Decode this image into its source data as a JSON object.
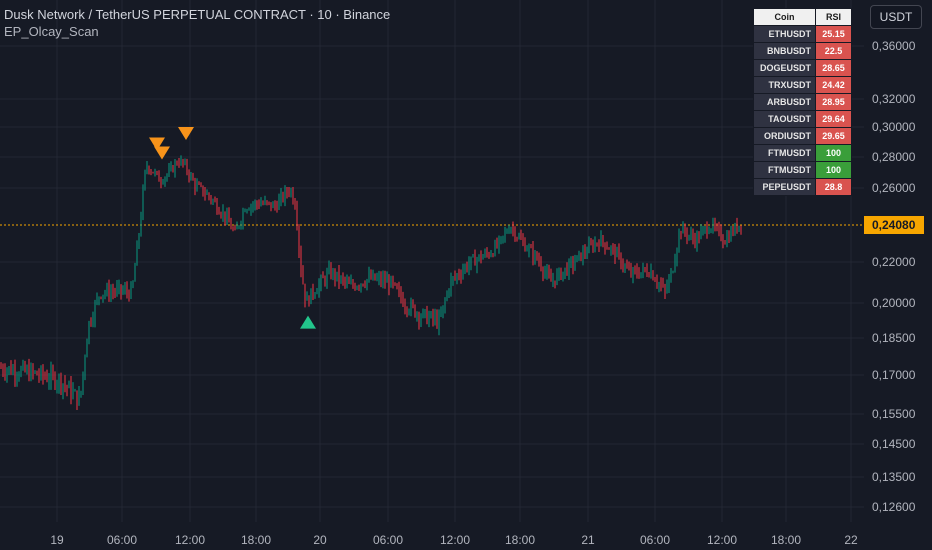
{
  "header": {
    "title": "Dusk Network / TetherUS PERPETUAL CONTRACT · 10 · Binance",
    "indicator": "EP_Olcay_Scan"
  },
  "currency": "USDT",
  "last_price": "0,24080",
  "colors": {
    "background": "#161a25",
    "grid": "#232734",
    "up_candle": "#089981",
    "down_candle": "#f23645",
    "price_line": "#f7a600",
    "sell_marker": "#f7931a",
    "buy_marker": "#22c58b",
    "rsi_low": "#d9534f",
    "rsi_high": "#3a9e3a"
  },
  "y_axis": {
    "ticks": [
      "0,36000",
      "0,32000",
      "0,30000",
      "0,28000",
      "0,26000",
      "0,22000",
      "0,20000",
      "0,18500",
      "0,17000",
      "0,15500",
      "0,14500",
      "0,13500",
      "0,12600"
    ]
  },
  "x_axis": {
    "ticks": [
      "19",
      "06:00",
      "12:00",
      "18:00",
      "20",
      "06:00",
      "12:00",
      "18:00",
      "21",
      "06:00",
      "12:00",
      "18:00",
      "22"
    ]
  },
  "rsi_table": {
    "headers": [
      "Coin",
      "RSI"
    ],
    "rows": [
      {
        "coin": "ETHUSDT",
        "rsi": "25.15",
        "status": "low"
      },
      {
        "coin": "BNBUSDT",
        "rsi": "22.5",
        "status": "low"
      },
      {
        "coin": "DOGEUSDT",
        "rsi": "28.65",
        "status": "low"
      },
      {
        "coin": "TRXUSDT",
        "rsi": "24.42",
        "status": "low"
      },
      {
        "coin": "ARBUSDT",
        "rsi": "28.95",
        "status": "low"
      },
      {
        "coin": "TAOUSDT",
        "rsi": "29.64",
        "status": "low"
      },
      {
        "coin": "ORDIUSDT",
        "rsi": "29.65",
        "status": "low"
      },
      {
        "coin": "FTMUSDT",
        "rsi": "100",
        "status": "high"
      },
      {
        "coin": "FTMUSDT",
        "rsi": "100",
        "status": "high"
      },
      {
        "coin": "PEPEUSDT",
        "rsi": "28.8",
        "status": "low"
      }
    ]
  },
  "chart_data": {
    "type": "candlestick",
    "interval": "10",
    "grid": true,
    "price_path": [
      [
        0,
        0.173
      ],
      [
        30,
        0.171
      ],
      [
        60,
        0.168
      ],
      [
        80,
        0.16
      ],
      [
        88,
        0.19
      ],
      [
        100,
        0.205
      ],
      [
        120,
        0.206
      ],
      [
        132,
        0.205
      ],
      [
        140,
        0.24
      ],
      [
        146,
        0.275
      ],
      [
        154,
        0.27
      ],
      [
        160,
        0.265
      ],
      [
        166,
        0.268
      ],
      [
        172,
        0.272
      ],
      [
        178,
        0.278
      ],
      [
        184,
        0.275
      ],
      [
        195,
        0.262
      ],
      [
        210,
        0.255
      ],
      [
        225,
        0.245
      ],
      [
        235,
        0.235
      ],
      [
        245,
        0.25
      ],
      [
        260,
        0.252
      ],
      [
        275,
        0.25
      ],
      [
        290,
        0.26
      ],
      [
        296,
        0.25
      ],
      [
        300,
        0.22
      ],
      [
        306,
        0.2
      ],
      [
        312,
        0.205
      ],
      [
        330,
        0.215
      ],
      [
        350,
        0.208
      ],
      [
        370,
        0.212
      ],
      [
        390,
        0.21
      ],
      [
        405,
        0.2
      ],
      [
        420,
        0.195
      ],
      [
        440,
        0.192
      ],
      [
        450,
        0.21
      ],
      [
        470,
        0.22
      ],
      [
        490,
        0.225
      ],
      [
        500,
        0.23
      ],
      [
        510,
        0.24
      ],
      [
        520,
        0.232
      ],
      [
        540,
        0.22
      ],
      [
        550,
        0.21
      ],
      [
        570,
        0.218
      ],
      [
        590,
        0.228
      ],
      [
        600,
        0.232
      ],
      [
        615,
        0.225
      ],
      [
        630,
        0.214
      ],
      [
        650,
        0.216
      ],
      [
        665,
        0.205
      ],
      [
        672,
        0.215
      ],
      [
        680,
        0.238
      ],
      [
        695,
        0.232
      ],
      [
        710,
        0.24
      ],
      [
        725,
        0.232
      ],
      [
        742,
        0.242
      ]
    ],
    "markers": [
      {
        "type": "sell",
        "x": 157,
        "price": 0.289
      },
      {
        "type": "sell",
        "x": 162,
        "price": 0.283
      },
      {
        "type": "sell",
        "x": 186,
        "price": 0.296
      },
      {
        "type": "buy",
        "x": 308,
        "price": 0.192
      }
    ]
  }
}
